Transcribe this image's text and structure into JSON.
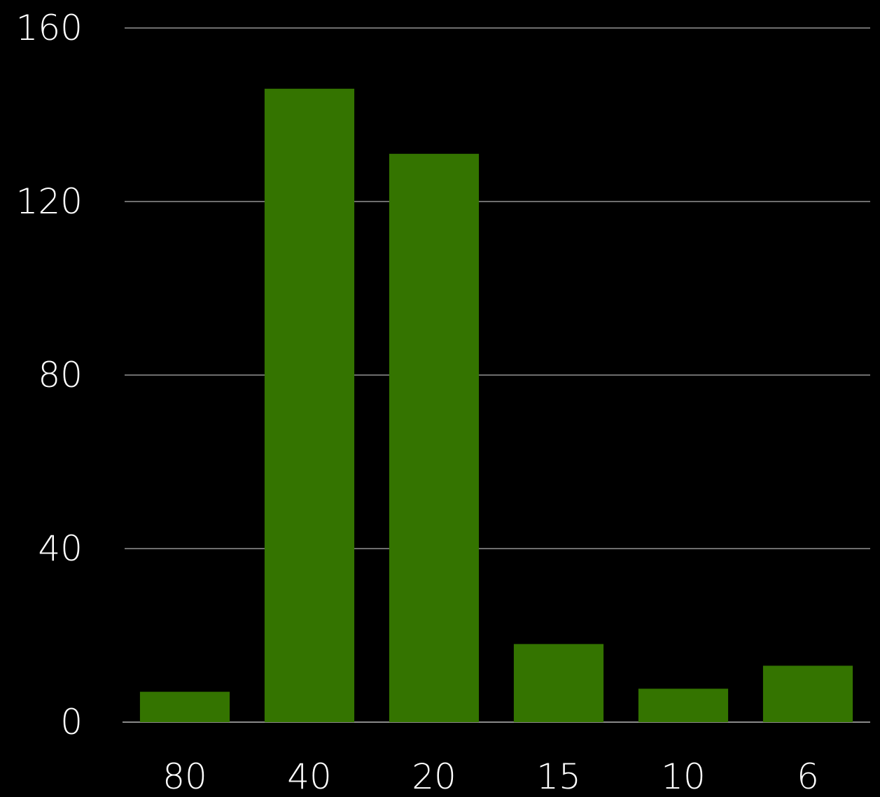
{
  "chart_data": {
    "type": "bar",
    "title": "",
    "xlabel": "",
    "ylabel": "",
    "categories": [
      "80",
      "40",
      "20",
      "15",
      "10",
      "6"
    ],
    "values": [
      7,
      146,
      131,
      18,
      7.7,
      13
    ],
    "ylim": [
      0,
      160
    ],
    "yticks": [
      0,
      40,
      80,
      120,
      160
    ],
    "grid": true,
    "legend": "none",
    "colors": {
      "bar": "#347400",
      "background": "#000000",
      "grid": "#6e6e6e",
      "text": "#ffffff"
    }
  }
}
